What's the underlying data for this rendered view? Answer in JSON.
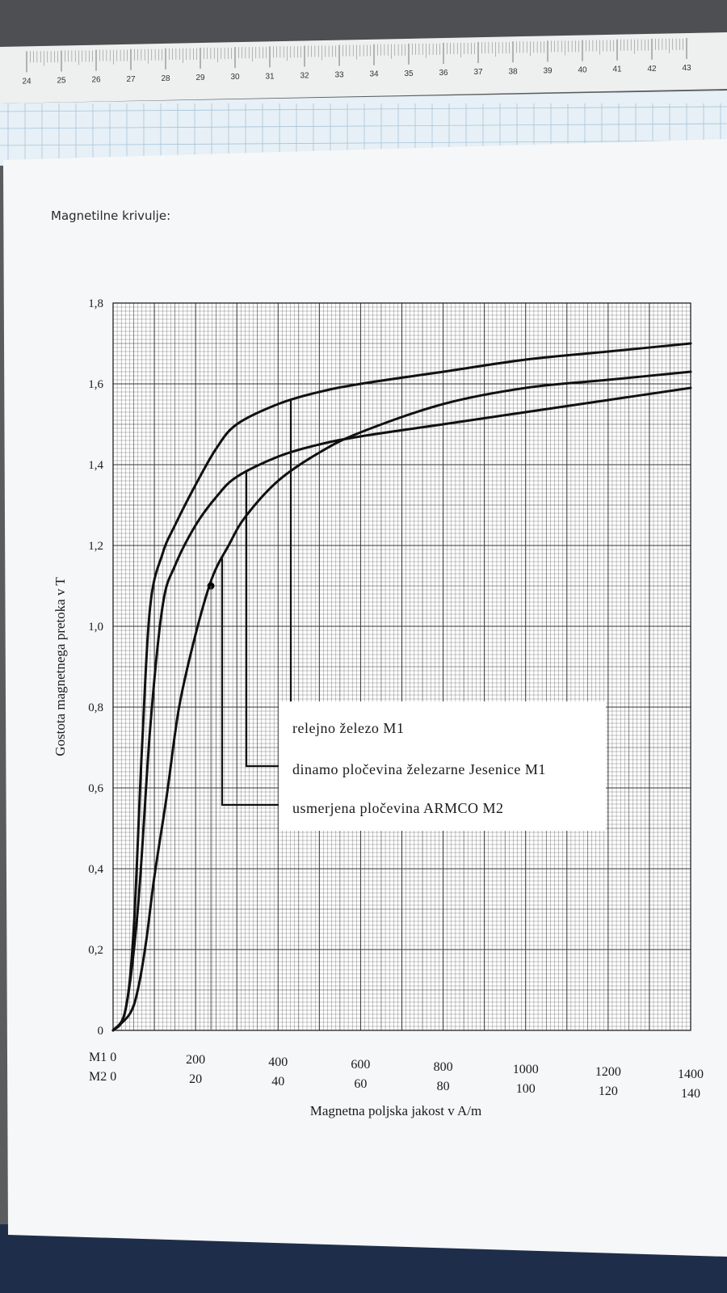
{
  "page": {
    "heading": "Magnetilne krivulje:"
  },
  "ruler": {
    "numbers": [
      "24",
      "25",
      "26",
      "27",
      "28",
      "29",
      "30",
      "31",
      "32",
      "33",
      "34",
      "35",
      "36",
      "37",
      "38",
      "39",
      "40",
      "41",
      "42",
      "43"
    ]
  },
  "chart_data": {
    "type": "line",
    "xlabel": "Magnetna poljska jakost v A/m",
    "ylabel": "Gostota magnetnega pretoka v T",
    "xlim": [
      0,
      1400
    ],
    "ylim": [
      0,
      1.8
    ],
    "grid": true,
    "y_ticks": [
      "0",
      "0,2",
      "0,4",
      "0,6",
      "0,8",
      "1,0",
      "1,2",
      "1,4",
      "1,6",
      "1,8"
    ],
    "x_ticks_m1": [
      "M1 0",
      "200",
      "400",
      "600",
      "800",
      "1000",
      "1200",
      "1400"
    ],
    "x_ticks_m2": [
      "M2 0",
      "20",
      "40",
      "60",
      "80",
      "100",
      "120",
      "140"
    ],
    "legend_position": "center-right",
    "series": [
      {
        "name": "relejno železo M1",
        "color": "#111111",
        "points": [
          [
            0,
            0
          ],
          [
            30,
            0.05
          ],
          [
            50,
            0.25
          ],
          [
            70,
            0.7
          ],
          [
            90,
            1.05
          ],
          [
            120,
            1.18
          ],
          [
            150,
            1.25
          ],
          [
            200,
            1.35
          ],
          [
            250,
            1.44
          ],
          [
            300,
            1.5
          ],
          [
            400,
            1.55
          ],
          [
            500,
            1.58
          ],
          [
            600,
            1.6
          ],
          [
            800,
            1.63
          ],
          [
            1000,
            1.66
          ],
          [
            1200,
            1.68
          ],
          [
            1400,
            1.7
          ]
        ]
      },
      {
        "name": "dinamo pločevina železarne Jesenice M1",
        "color": "#111111",
        "points": [
          [
            0,
            0
          ],
          [
            30,
            0.05
          ],
          [
            60,
            0.3
          ],
          [
            90,
            0.75
          ],
          [
            120,
            1.05
          ],
          [
            150,
            1.15
          ],
          [
            200,
            1.25
          ],
          [
            250,
            1.32
          ],
          [
            300,
            1.37
          ],
          [
            400,
            1.42
          ],
          [
            500,
            1.45
          ],
          [
            600,
            1.47
          ],
          [
            800,
            1.5
          ],
          [
            1000,
            1.53
          ],
          [
            1200,
            1.56
          ],
          [
            1400,
            1.59
          ]
        ]
      },
      {
        "name": "usmerjena pločevina ARMCO M2",
        "color": "#111111",
        "points": [
          [
            0,
            0
          ],
          [
            40,
            0.04
          ],
          [
            60,
            0.1
          ],
          [
            80,
            0.22
          ],
          [
            100,
            0.38
          ],
          [
            130,
            0.58
          ],
          [
            160,
            0.8
          ],
          [
            200,
            0.98
          ],
          [
            240,
            1.12
          ],
          [
            280,
            1.2
          ],
          [
            320,
            1.27
          ],
          [
            400,
            1.36
          ],
          [
            500,
            1.43
          ],
          [
            600,
            1.48
          ],
          [
            800,
            1.55
          ],
          [
            1000,
            1.59
          ],
          [
            1200,
            1.61
          ],
          [
            1400,
            1.63
          ]
        ]
      }
    ],
    "marker_point": [
      237,
      1.1
    ]
  }
}
